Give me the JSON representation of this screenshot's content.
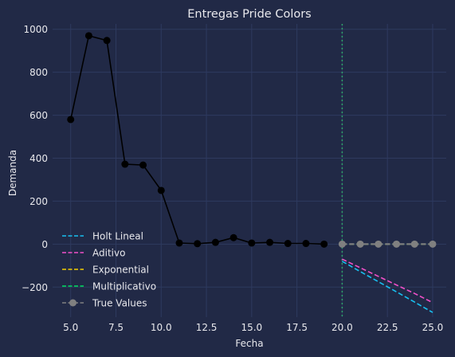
{
  "chart_data": {
    "type": "line",
    "title": "Entregas Pride Colors",
    "xlabel": "Fecha",
    "ylabel": "Demanda",
    "xlim": [
      4.0,
      25.75
    ],
    "ylim": [
      -340,
      1025
    ],
    "xticks": [
      5.0,
      7.5,
      10.0,
      12.5,
      15.0,
      17.5,
      20.0,
      22.5,
      25.0
    ],
    "xtick_labels": [
      "5.0",
      "7.5",
      "10.0",
      "12.5",
      "15.0",
      "17.5",
      "20.0",
      "22.5",
      "25.0"
    ],
    "yticks": [
      -200,
      0,
      200,
      400,
      600,
      800,
      1000
    ],
    "ytick_labels": [
      "−200",
      "0",
      "200",
      "400",
      "600",
      "800",
      "1000"
    ],
    "grid": true,
    "legend_position": "lower-left",
    "vline": {
      "x": 20.0,
      "color": "#2ea16a",
      "style": "dotted"
    },
    "history": {
      "color": "#000000",
      "x": [
        5,
        6,
        7,
        8,
        9,
        10,
        11,
        12,
        13,
        14,
        15,
        16,
        17,
        18,
        19
      ],
      "y": [
        580,
        970,
        948,
        372,
        368,
        250,
        5,
        2,
        8,
        30,
        5,
        8,
        3,
        3,
        0
      ]
    },
    "series": [
      {
        "name": "Holt Lineal",
        "color": "#18c0f0",
        "style": "dashed",
        "x": [
          20,
          21,
          22,
          23,
          24,
          25
        ],
        "y": [
          -80,
          -128,
          -175,
          -222,
          -270,
          -318
        ]
      },
      {
        "name": "Aditivo",
        "color": "#f050c8",
        "style": "dashed",
        "x": [
          20,
          21,
          22,
          23,
          24,
          25
        ],
        "y": [
          -70,
          -110,
          -150,
          -190,
          -230,
          -272
        ]
      },
      {
        "name": "Exponential",
        "color": "#f5d000",
        "style": "dashed",
        "x": [
          20,
          21,
          22,
          23,
          24,
          25
        ],
        "y": [
          0,
          0,
          0,
          0,
          0,
          0
        ]
      },
      {
        "name": "Multiplicativo",
        "color": "#00e060",
        "style": "dashed",
        "x": [
          20,
          21,
          22,
          23,
          24,
          25
        ],
        "y": [
          0,
          0,
          0,
          0,
          0,
          0
        ]
      },
      {
        "name": "True Values",
        "color": "#808080",
        "style": "dashed-marker",
        "x": [
          20,
          21,
          22,
          23,
          24,
          25
        ],
        "y": [
          0,
          0,
          0,
          0,
          0,
          0
        ]
      }
    ]
  }
}
